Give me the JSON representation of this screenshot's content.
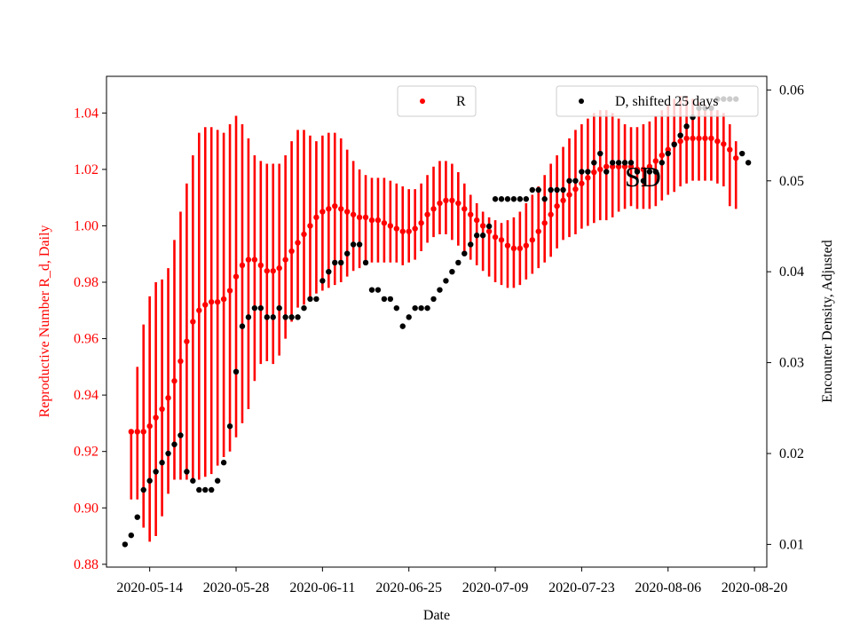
{
  "chart_data": {
    "type": "scatter",
    "xlabel": "Date",
    "ylabel_left": "Reproductive Number R_d, Daily",
    "ylabel_right": "Encounter Density, Adjusted",
    "annotation": "SD",
    "x_ticks": [
      "2020-05-14",
      "2020-05-28",
      "2020-06-11",
      "2020-06-25",
      "2020-07-09",
      "2020-07-23",
      "2020-08-06",
      "2020-08-20"
    ],
    "x_range": [
      "2020-05-07",
      "2020-08-22"
    ],
    "y_left_ticks": [
      "0.88",
      "0.90",
      "0.92",
      "0.94",
      "0.96",
      "0.98",
      "1.00",
      "1.02",
      "1.04"
    ],
    "y_left_range": [
      0.879,
      1.053
    ],
    "y_right_ticks": [
      "0.01",
      "0.02",
      "0.03",
      "0.04",
      "0.05",
      "0.06"
    ],
    "y_right_range": [
      0.0075,
      0.0615
    ],
    "grid": false,
    "colors": {
      "r_series": "#ff0000",
      "d_series": "#000000"
    },
    "series": [
      {
        "name": "R",
        "axis": "left",
        "color": "#ff0000",
        "error_bars": true,
        "x": [
          "2020-05-11",
          "2020-05-12",
          "2020-05-13",
          "2020-05-14",
          "2020-05-15",
          "2020-05-16",
          "2020-05-17",
          "2020-05-18",
          "2020-05-19",
          "2020-05-20",
          "2020-05-21",
          "2020-05-22",
          "2020-05-23",
          "2020-05-24",
          "2020-05-25",
          "2020-05-26",
          "2020-05-27",
          "2020-05-28",
          "2020-05-29",
          "2020-05-30",
          "2020-05-31",
          "2020-06-01",
          "2020-06-02",
          "2020-06-03",
          "2020-06-04",
          "2020-06-05",
          "2020-06-06",
          "2020-06-07",
          "2020-06-08",
          "2020-06-09",
          "2020-06-10",
          "2020-06-11",
          "2020-06-12",
          "2020-06-13",
          "2020-06-14",
          "2020-06-15",
          "2020-06-16",
          "2020-06-17",
          "2020-06-18",
          "2020-06-19",
          "2020-06-20",
          "2020-06-21",
          "2020-06-22",
          "2020-06-23",
          "2020-06-24",
          "2020-06-25",
          "2020-06-26",
          "2020-06-27",
          "2020-06-28",
          "2020-06-29",
          "2020-06-30",
          "2020-07-01",
          "2020-07-02",
          "2020-07-03",
          "2020-07-04",
          "2020-07-05",
          "2020-07-06",
          "2020-07-07",
          "2020-07-08",
          "2020-07-09",
          "2020-07-10",
          "2020-07-11",
          "2020-07-12",
          "2020-07-13",
          "2020-07-14",
          "2020-07-15",
          "2020-07-16",
          "2020-07-17",
          "2020-07-18",
          "2020-07-19",
          "2020-07-20",
          "2020-07-21",
          "2020-07-22",
          "2020-07-23",
          "2020-07-24",
          "2020-07-25",
          "2020-07-26",
          "2020-07-27",
          "2020-07-28",
          "2020-07-29",
          "2020-07-30",
          "2020-07-31",
          "2020-08-01",
          "2020-08-02",
          "2020-08-03",
          "2020-08-04",
          "2020-08-05",
          "2020-08-06",
          "2020-08-07",
          "2020-08-08",
          "2020-08-09",
          "2020-08-10",
          "2020-08-11",
          "2020-08-12",
          "2020-08-13",
          "2020-08-14",
          "2020-08-15",
          "2020-08-16",
          "2020-08-17"
        ],
        "y": [
          0.927,
          0.927,
          0.927,
          0.929,
          0.932,
          0.935,
          0.939,
          0.945,
          0.952,
          0.959,
          0.966,
          0.97,
          0.972,
          0.973,
          0.973,
          0.974,
          0.977,
          0.982,
          0.986,
          0.988,
          0.988,
          0.986,
          0.984,
          0.984,
          0.985,
          0.988,
          0.991,
          0.994,
          0.997,
          1.0,
          1.003,
          1.005,
          1.006,
          1.007,
          1.006,
          1.005,
          1.004,
          1.003,
          1.003,
          1.002,
          1.002,
          1.001,
          1.0,
          0.999,
          0.998,
          0.998,
          0.999,
          1.001,
          1.004,
          1.006,
          1.008,
          1.009,
          1.009,
          1.008,
          1.006,
          1.004,
          1.002,
          1.0,
          0.998,
          0.996,
          0.995,
          0.993,
          0.992,
          0.992,
          0.993,
          0.995,
          0.998,
          1.001,
          1.004,
          1.007,
          1.009,
          1.011,
          1.013,
          1.015,
          1.017,
          1.019,
          1.02,
          1.021,
          1.021,
          1.021,
          1.021,
          1.021,
          1.02,
          1.02,
          1.021,
          1.023,
          1.025,
          1.027,
          1.029,
          1.03,
          1.031,
          1.031,
          1.031,
          1.031,
          1.031,
          1.03,
          1.029,
          1.027,
          1.024
        ],
        "y_low": [
          0.903,
          0.903,
          0.893,
          0.888,
          0.89,
          0.897,
          0.905,
          0.91,
          0.91,
          0.91,
          0.91,
          0.91,
          0.911,
          0.912,
          0.915,
          0.918,
          0.92,
          0.925,
          0.93,
          0.935,
          0.945,
          0.951,
          0.952,
          0.951,
          0.954,
          0.96,
          0.966,
          0.971,
          0.972,
          0.974,
          0.976,
          0.977,
          0.978,
          0.979,
          0.98,
          0.982,
          0.984,
          0.985,
          0.986,
          0.987,
          0.987,
          0.987,
          0.987,
          0.987,
          0.986,
          0.987,
          0.988,
          0.991,
          0.994,
          0.996,
          0.997,
          0.997,
          0.995,
          0.993,
          0.991,
          0.988,
          0.986,
          0.984,
          0.982,
          0.98,
          0.979,
          0.978,
          0.978,
          0.979,
          0.981,
          0.983,
          0.985,
          0.987,
          0.989,
          0.992,
          0.995,
          0.996,
          0.997,
          0.999,
          1.0,
          1.001,
          1.002,
          1.002,
          1.003,
          1.005,
          1.006,
          1.007,
          1.006,
          1.006,
          1.006,
          1.007,
          1.009,
          1.011,
          1.012,
          1.014,
          1.015,
          1.016,
          1.016,
          1.016,
          1.016,
          1.015,
          1.014,
          1.007,
          1.006
        ],
        "y_high": [
          0.927,
          0.95,
          0.965,
          0.975,
          0.98,
          0.981,
          0.985,
          0.995,
          1.005,
          1.015,
          1.025,
          1.033,
          1.035,
          1.035,
          1.034,
          1.033,
          1.036,
          1.039,
          1.036,
          1.031,
          1.025,
          1.023,
          1.022,
          1.022,
          1.022,
          1.025,
          1.03,
          1.034,
          1.034,
          1.032,
          1.03,
          1.032,
          1.033,
          1.033,
          1.031,
          1.027,
          1.023,
          1.02,
          1.018,
          1.017,
          1.017,
          1.017,
          1.016,
          1.015,
          1.014,
          1.013,
          1.013,
          1.015,
          1.018,
          1.021,
          1.023,
          1.023,
          1.022,
          1.019,
          1.015,
          1.011,
          1.008,
          1.005,
          1.003,
          1.002,
          1.001,
          1.002,
          1.003,
          1.005,
          1.008,
          1.011,
          1.014,
          1.018,
          1.022,
          1.025,
          1.028,
          1.031,
          1.034,
          1.036,
          1.038,
          1.04,
          1.041,
          1.041,
          1.04,
          1.038,
          1.036,
          1.035,
          1.035,
          1.036,
          1.037,
          1.039,
          1.041,
          1.043,
          1.045,
          1.046,
          1.046,
          1.045,
          1.044,
          1.043,
          1.042,
          1.041,
          1.04,
          1.036,
          1.03
        ]
      },
      {
        "name": "D, shifted 25 days",
        "axis": "right",
        "color": "#000000",
        "x": [
          "2020-05-10",
          "2020-05-11",
          "2020-05-12",
          "2020-05-13",
          "2020-05-14",
          "2020-05-15",
          "2020-05-16",
          "2020-05-17",
          "2020-05-18",
          "2020-05-19",
          "2020-05-20",
          "2020-05-21",
          "2020-05-22",
          "2020-05-23",
          "2020-05-24",
          "2020-05-25",
          "2020-05-26",
          "2020-05-27",
          "2020-05-28",
          "2020-05-29",
          "2020-05-30",
          "2020-05-31",
          "2020-06-01",
          "2020-06-02",
          "2020-06-03",
          "2020-06-04",
          "2020-06-05",
          "2020-06-06",
          "2020-06-07",
          "2020-06-08",
          "2020-06-09",
          "2020-06-10",
          "2020-06-11",
          "2020-06-12",
          "2020-06-13",
          "2020-06-14",
          "2020-06-15",
          "2020-06-16",
          "2020-06-17",
          "2020-06-18",
          "2020-06-19",
          "2020-06-20",
          "2020-06-21",
          "2020-06-22",
          "2020-06-23",
          "2020-06-24",
          "2020-06-25",
          "2020-06-26",
          "2020-06-27",
          "2020-06-28",
          "2020-06-29",
          "2020-06-30",
          "2020-07-01",
          "2020-07-02",
          "2020-07-03",
          "2020-07-04",
          "2020-07-05",
          "2020-07-06",
          "2020-07-07",
          "2020-07-08",
          "2020-07-09",
          "2020-07-10",
          "2020-07-11",
          "2020-07-12",
          "2020-07-13",
          "2020-07-14",
          "2020-07-15",
          "2020-07-16",
          "2020-07-17",
          "2020-07-18",
          "2020-07-19",
          "2020-07-20",
          "2020-07-21",
          "2020-07-22",
          "2020-07-23",
          "2020-07-24",
          "2020-07-25",
          "2020-07-26",
          "2020-07-27",
          "2020-07-28",
          "2020-07-29",
          "2020-07-30",
          "2020-07-31",
          "2020-08-01",
          "2020-08-02",
          "2020-08-03",
          "2020-08-04",
          "2020-08-05",
          "2020-08-06",
          "2020-08-07",
          "2020-08-08",
          "2020-08-09",
          "2020-08-10",
          "2020-08-11",
          "2020-08-12",
          "2020-08-13",
          "2020-08-14",
          "2020-08-15",
          "2020-08-16",
          "2020-08-17",
          "2020-08-18",
          "2020-08-19"
        ],
        "y": [
          0.01,
          0.011,
          0.013,
          0.016,
          0.017,
          0.018,
          0.019,
          0.02,
          0.021,
          0.022,
          0.018,
          0.017,
          0.016,
          0.016,
          0.016,
          0.017,
          0.019,
          0.023,
          0.029,
          0.034,
          0.035,
          0.036,
          0.036,
          0.035,
          0.035,
          0.036,
          0.035,
          0.035,
          0.035,
          0.036,
          0.037,
          0.037,
          0.039,
          0.04,
          0.041,
          0.041,
          0.042,
          0.043,
          0.043,
          0.041,
          0.038,
          0.038,
          0.037,
          0.037,
          0.036,
          0.034,
          0.035,
          0.036,
          0.036,
          0.036,
          0.037,
          0.038,
          0.039,
          0.04,
          0.041,
          0.042,
          0.043,
          0.044,
          0.044,
          0.045,
          0.048,
          0.048,
          0.048,
          0.048,
          0.048,
          0.048,
          0.049,
          0.049,
          0.048,
          0.049,
          0.049,
          0.049,
          0.05,
          0.05,
          0.051,
          0.051,
          0.052,
          0.053,
          0.051,
          0.052,
          0.052,
          0.052,
          0.052,
          0.051,
          0.05,
          0.051,
          0.051,
          0.052,
          0.053,
          0.054,
          0.055,
          0.056,
          0.057,
          0.058,
          0.058,
          0.058,
          0.059,
          0.059,
          0.059,
          0.059,
          0.053,
          0.052
        ]
      }
    ]
  }
}
